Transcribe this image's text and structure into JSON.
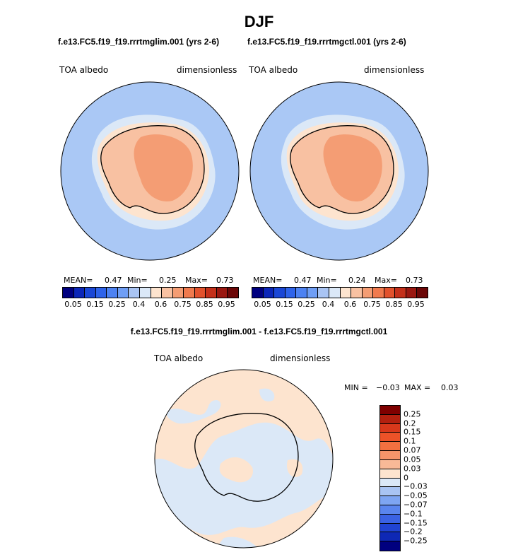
{
  "title": "DJF",
  "panel_left": {
    "case": "f.e13.FC5.f19_f19.rrrtmglim.001 (yrs 2-6)",
    "var_label": "TOA albedo",
    "units": "dimensionless",
    "mean_label": "MEAN=",
    "mean": "0.47",
    "min_label": "Min=",
    "min": "0.25",
    "max_label": "Max=",
    "max": "0.73"
  },
  "panel_right": {
    "case": "f.e13.FC5.f19_f19.rrrtmgctl.001 (yrs 2-6)",
    "var_label": "TOA albedo",
    "units": "dimensionless",
    "mean_label": "MEAN=",
    "mean": "0.47",
    "min_label": "Min=",
    "min": "0.24",
    "max_label": "Max=",
    "max": "0.73"
  },
  "colorbar_abs": {
    "colors": [
      "#00007f",
      "#0b26b8",
      "#1a47d6",
      "#2e63ea",
      "#4d82f2",
      "#6f9ef5",
      "#a9c4f3",
      "#dbe8f7",
      "#fde4cf",
      "#f8c1a2",
      "#f49d74",
      "#f07a4e",
      "#e2522d",
      "#c4301a",
      "#9a1710",
      "#6b0606"
    ],
    "ticks": [
      "0.05",
      "0.15",
      "0.25",
      "0.4",
      "0.6",
      "0.75",
      "0.85",
      "0.95"
    ]
  },
  "panel_diff": {
    "title": "f.e13.FC5.f19_f19.rrrtmglim.001 - f.e13.FC5.f19_f19.rrrtmgctl.001",
    "var_label": "TOA albedo",
    "units": "dimensionless",
    "min_label": "MIN =",
    "min": "−0.03",
    "max_label": "MAX =",
    "max": "0.03"
  },
  "colorbar_diff": {
    "colors": [
      "#7f0000",
      "#b3200f",
      "#d8381b",
      "#ec5228",
      "#f27040",
      "#f5946a",
      "#f8b997",
      "#fde4cf",
      "#dbe8f7",
      "#a9c4f3",
      "#7ea5f2",
      "#5a85ee",
      "#3a62e4",
      "#2043d3",
      "#0e28b5",
      "#00007f"
    ],
    "labels": [
      "0.25",
      "0.2",
      "0.15",
      "0.1",
      "0.07",
      "0.05",
      "0.03",
      "0",
      "−0.03",
      "−0.05",
      "−0.07",
      "−0.1",
      "−0.15",
      "−0.2",
      "−0.25"
    ]
  },
  "map_colors": {
    "ocean": "#aac8f5",
    "sea_ice_edge": "#dbe8f7",
    "pale": "#fde4cf",
    "land": "#f8c1a2",
    "interior": "#f49d74",
    "diff_pos": "#fde4cf",
    "diff_neg": "#dbe8f7"
  }
}
